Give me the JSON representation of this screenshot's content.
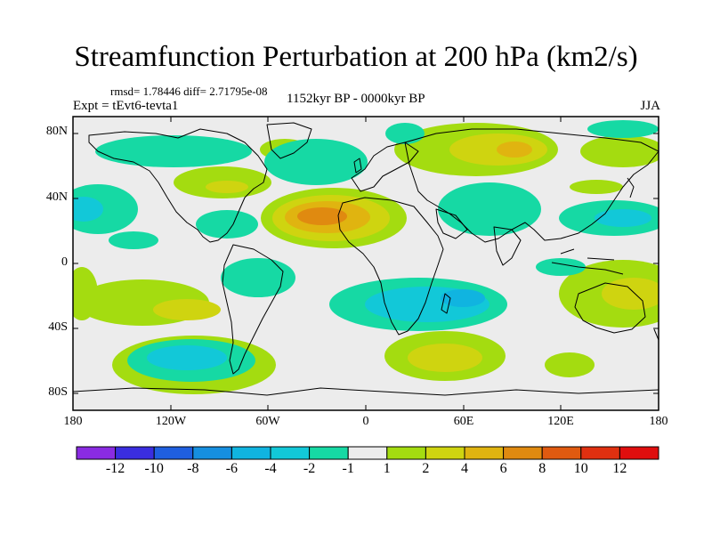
{
  "title": "Streamfunction Perturbation at 200 hPa (km2/s)",
  "stats_line": "rmsd= 1.78446 diff= 2.71795e-08",
  "experiment": "Expt = tEvt6-tevta1",
  "period": "1152kyr BP - 0000kyr BP",
  "season": "JJA",
  "lat_labels": [
    "80N",
    "40N",
    "0",
    "40S",
    "80S"
  ],
  "lon_labels": [
    "180",
    "120W",
    "60W",
    "0",
    "60E",
    "120E",
    "180"
  ],
  "colorbar": {
    "labels": [
      "-12",
      "-10",
      "-8",
      "-6",
      "-4",
      "-2",
      "-1",
      "1",
      "2",
      "4",
      "6",
      "8",
      "10",
      "12"
    ],
    "colors": [
      "#8a2be2",
      "#3a2ee0",
      "#1f5fe0",
      "#168fe0",
      "#10b4e0",
      "#12c8d8",
      "#16d9a4",
      "#ececec",
      "#a4dc10",
      "#cfd410",
      "#e0b410",
      "#e08a10",
      "#e05a10",
      "#e03010",
      "#e00e0e"
    ]
  }
}
